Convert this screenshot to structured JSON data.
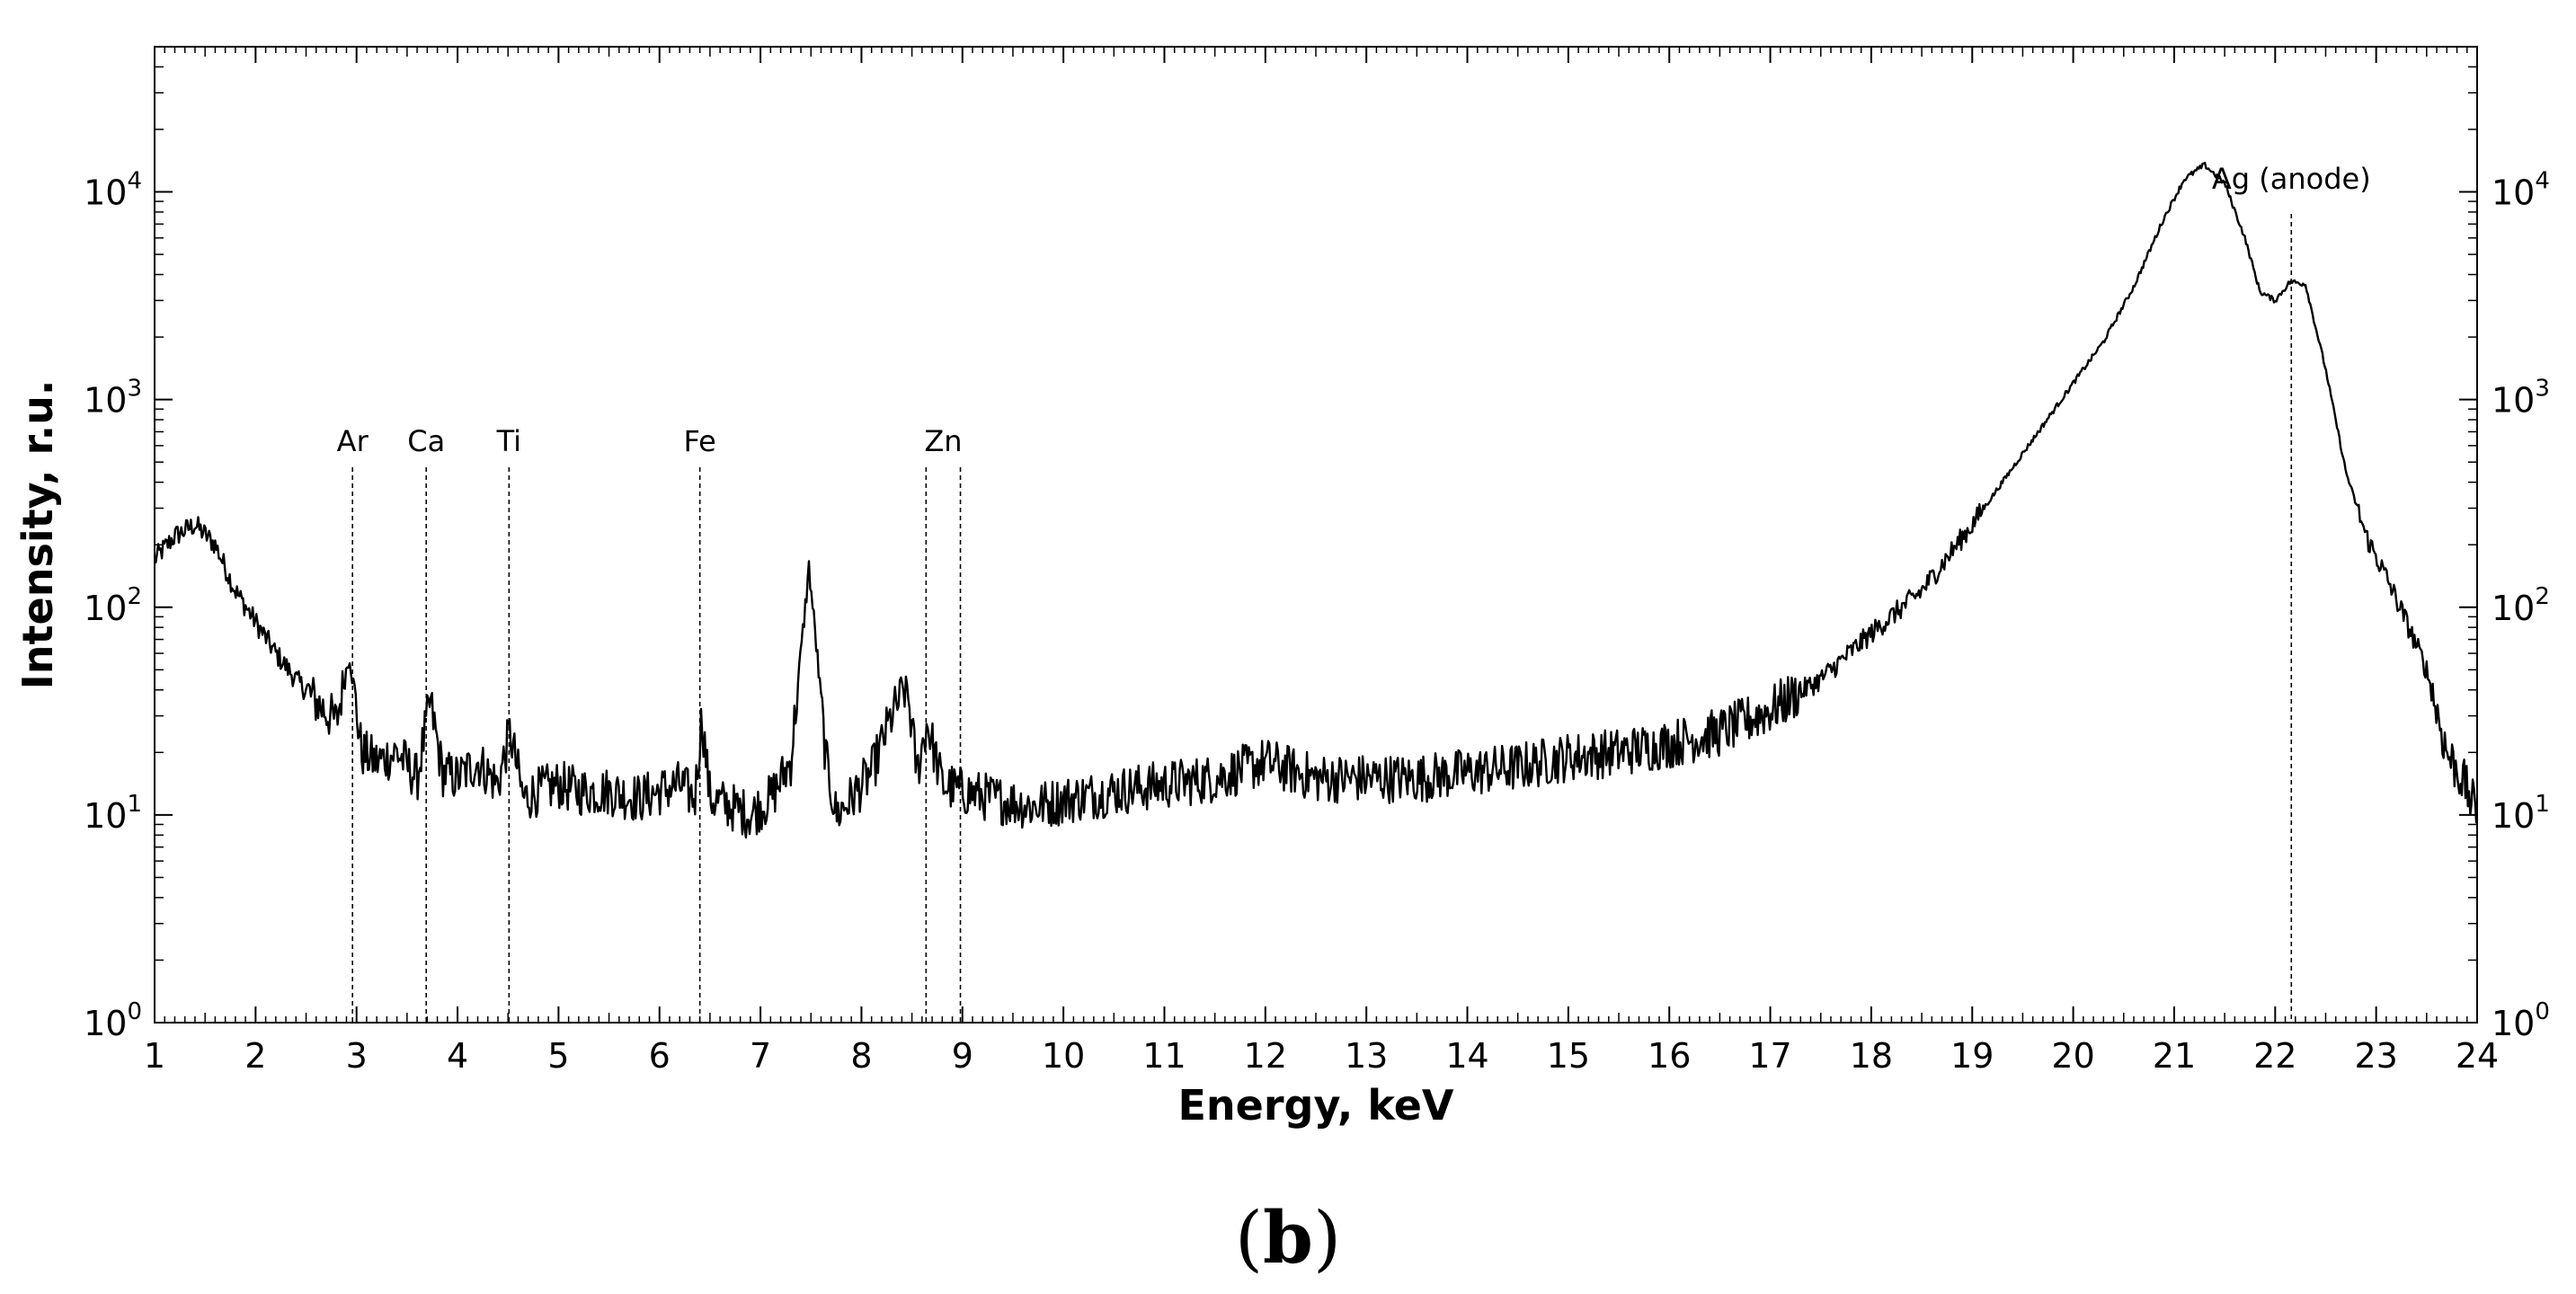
{
  "chart_data": {
    "type": "line",
    "title": "",
    "xlabel": "Energy, keV",
    "ylabel": "Intensity, r.u.",
    "xlim": [
      1,
      24
    ],
    "ylim": [
      1,
      50000
    ],
    "yscale": "log",
    "grid": false,
    "x_ticks": [
      1,
      2,
      3,
      4,
      5,
      6,
      7,
      8,
      9,
      10,
      11,
      12,
      13,
      14,
      15,
      16,
      17,
      18,
      19,
      20,
      21,
      22,
      23,
      24
    ],
    "x_tick_labels": [
      "1",
      "2",
      "3",
      "4",
      "5",
      "6",
      "7",
      "8",
      "9",
      "10",
      "11",
      "12",
      "13",
      "14",
      "15",
      "16",
      "17",
      "18",
      "19",
      "20",
      "21",
      "22",
      "23",
      "24"
    ],
    "y_ticks": [
      1,
      10,
      100,
      1000,
      10000
    ],
    "y_tick_labels": [
      {
        "base": "10",
        "exp": "0"
      },
      {
        "base": "10",
        "exp": "1"
      },
      {
        "base": "10",
        "exp": "2"
      },
      {
        "base": "10",
        "exp": "3"
      },
      {
        "base": "10",
        "exp": "4"
      }
    ],
    "series": [
      {
        "x": [
          1.0,
          1.2,
          1.4,
          1.6,
          1.8,
          2.0,
          2.2,
          2.4,
          2.6,
          2.8,
          2.93,
          3.05,
          3.2,
          3.4,
          3.6,
          3.73,
          3.85,
          4.0,
          4.2,
          4.4,
          4.52,
          4.65,
          4.8,
          5.0,
          5.2,
          5.5,
          5.8,
          6.0,
          6.2,
          6.35,
          6.42,
          6.5,
          6.7,
          6.9,
          7.1,
          7.3,
          7.4,
          7.48,
          7.56,
          7.65,
          7.75,
          7.9,
          8.1,
          8.3,
          8.45,
          8.55,
          8.65,
          8.8,
          9.0,
          9.3,
          9.7,
          10.1,
          10.5,
          11.0,
          11.5,
          12.0,
          12.5,
          13.0,
          13.5,
          14.0,
          14.5,
          15.0,
          15.5,
          16.0,
          16.5,
          17.0,
          17.5,
          18.0,
          18.5,
          19.0,
          19.5,
          20.0,
          20.3,
          20.6,
          20.9,
          21.1,
          21.3,
          21.5,
          21.7,
          21.85,
          22.0,
          22.15,
          22.3,
          22.5,
          22.7,
          22.9,
          23.1,
          23.3,
          23.5,
          23.7,
          23.85,
          24.0
        ],
        "y": [
          170,
          220,
          250,
          200,
          120,
          85,
          60,
          45,
          35,
          28,
          60,
          20,
          18,
          20,
          15,
          35,
          16,
          15,
          18,
          14,
          25,
          12,
          13,
          14,
          13,
          13,
          12,
          13,
          14,
          12,
          30,
          12,
          11,
          10,
          12,
          18,
          60,
          155,
          60,
          18,
          10,
          12,
          16,
          30,
          42,
          16,
          28,
          14,
          13,
          12,
          11,
          12,
          13,
          14,
          15,
          18,
          15,
          15,
          15,
          16,
          17,
          19,
          20,
          22,
          25,
          32,
          45,
          75,
          120,
          250,
          550,
          1200,
          1900,
          3500,
          7500,
          11500,
          13500,
          11000,
          6000,
          3300,
          3000,
          3700,
          3600,
          1400,
          450,
          220,
          140,
          85,
          50,
          20,
          15,
          10
        ]
      }
    ],
    "annotations": [
      {
        "label": "Ar",
        "x": 2.96
      },
      {
        "label": "Ca",
        "x": 3.69
      },
      {
        "label": "Ti",
        "x": 4.51
      },
      {
        "label": "Fe",
        "x": 6.4
      },
      {
        "label": "Zn",
        "x": 8.64,
        "x2": 8.98
      },
      {
        "label": "Ag (anode)",
        "x": 22.16
      }
    ]
  },
  "panel_label": "b"
}
